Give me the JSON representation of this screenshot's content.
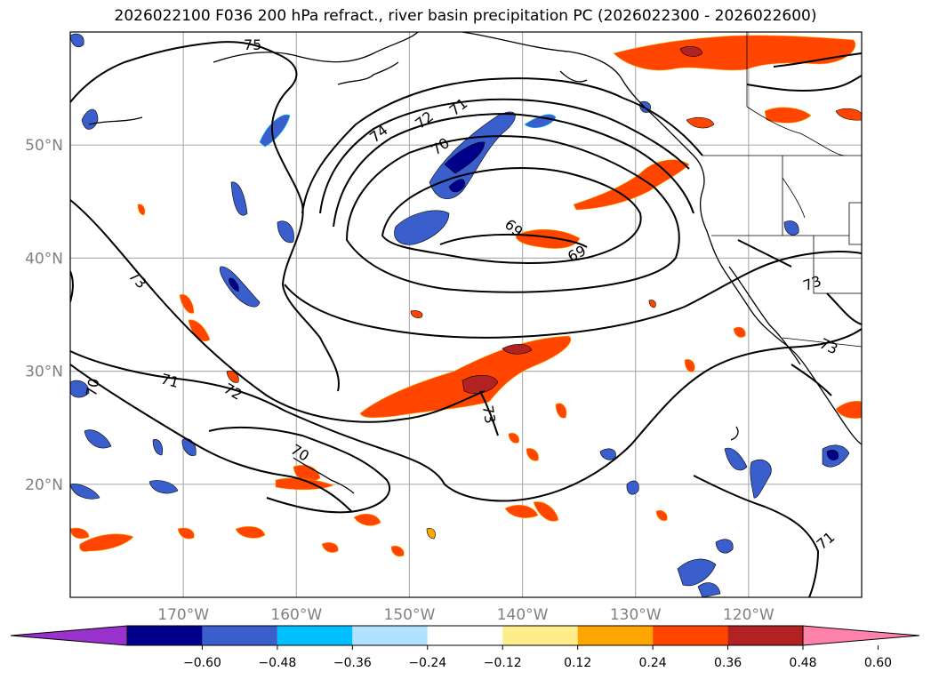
{
  "title": "2026022100 F036 200 hPa refract., river basin precipitation PC (2026022300 - 2026022600)",
  "map": {
    "lon_range": [
      -180,
      -110
    ],
    "lat_range": [
      10,
      60
    ],
    "lat_ticks": [
      {
        "value": 20,
        "label": "20°N"
      },
      {
        "value": 30,
        "label": "30°N"
      },
      {
        "value": 40,
        "label": "40°N"
      },
      {
        "value": 50,
        "label": "50°N"
      }
    ],
    "lon_ticks": [
      {
        "value": -170,
        "label": "170°W"
      },
      {
        "value": -160,
        "label": "160°W"
      },
      {
        "value": -150,
        "label": "150°W"
      },
      {
        "value": -140,
        "label": "140°W"
      },
      {
        "value": -130,
        "label": "130°W"
      },
      {
        "value": -120,
        "label": "120°W"
      }
    ],
    "gridlines": true,
    "contour_labels": [
      "75",
      "74",
      "72",
      "71",
      "70",
      "69",
      "69",
      "73",
      "71",
      "72",
      "70",
      "70",
      "73",
      "73",
      "73",
      "71"
    ]
  },
  "colorbar": {
    "ticks": [
      "−0.60",
      "−0.48",
      "−0.36",
      "−0.24",
      "−0.12",
      "0.12",
      "0.24",
      "0.36",
      "0.48",
      "0.60"
    ],
    "colors": [
      "#9932cc",
      "#00008b",
      "#3a5fcd",
      "#00bfff",
      "#b0e2ff",
      "#ffffff",
      "#ffec8b",
      "#ffa500",
      "#ff4500",
      "#b22222",
      "#ff82ab"
    ]
  }
}
